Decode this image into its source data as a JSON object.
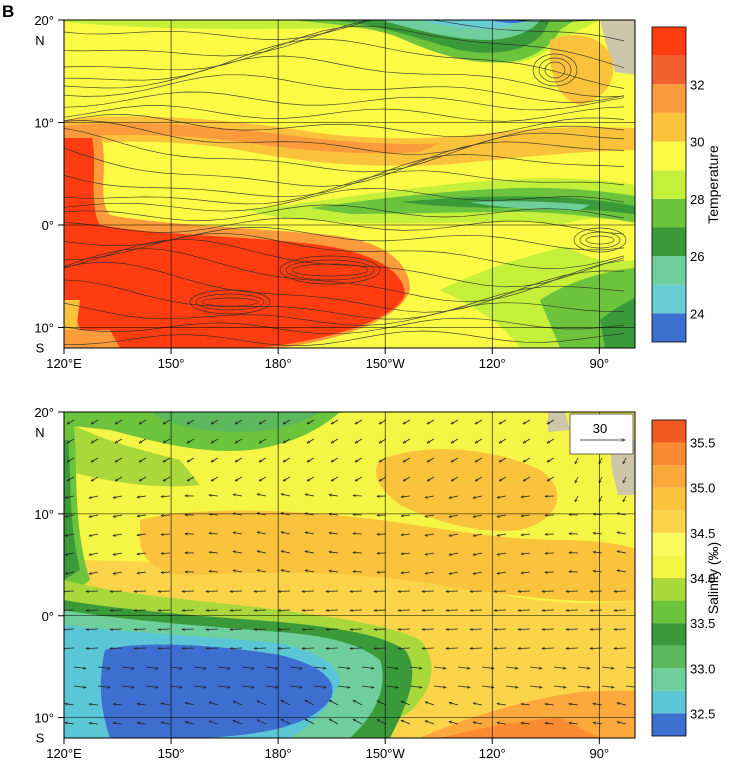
{
  "figure": {
    "panel_letter": "B"
  },
  "chart_data": [
    {
      "type": "heatmap",
      "panel": "top",
      "overlay": "streamlines",
      "x_ticks": [
        "120°E",
        "150°",
        "180°",
        "150°W",
        "120°",
        "90°"
      ],
      "x_tick_lon": [
        120,
        150,
        180,
        210,
        240,
        270
      ],
      "xlim_lon": [
        120,
        280
      ],
      "y_ticks": [
        {
          "lat": 20,
          "label": "20°",
          "suffix": "N"
        },
        {
          "lat": 10,
          "label": "10°",
          "suffix": ""
        },
        {
          "lat": 0,
          "label": "0°",
          "suffix": ""
        },
        {
          "lat": -10,
          "label": "10°",
          "suffix": "S"
        }
      ],
      "ylim_lat": [
        -12,
        20
      ],
      "colorbar": {
        "label": "Temperature",
        "levels": [
          23,
          24,
          25,
          26,
          27,
          28,
          29,
          30,
          31,
          32,
          33,
          34
        ],
        "colors": [
          "#3d6fd1",
          "#67cdd2",
          "#6fcf9c",
          "#3a9a3a",
          "#6cc43c",
          "#c5f03a",
          "#fbfb46",
          "#fbc33c",
          "#fb9b3c",
          "#f06030",
          "#ff3d10"
        ],
        "tick_labels": [
          "24",
          "26",
          "28",
          "30",
          "32"
        ],
        "tick_values": [
          24,
          26,
          28,
          30,
          32
        ]
      }
    },
    {
      "type": "heatmap",
      "panel": "bottom",
      "overlay": "vectors",
      "reference_vector": {
        "label": "30"
      },
      "x_ticks": [
        "120°E",
        "150°",
        "180°",
        "150°W",
        "120°",
        "90°"
      ],
      "x_tick_lon": [
        120,
        150,
        180,
        210,
        240,
        270
      ],
      "xlim_lon": [
        120,
        280
      ],
      "y_ticks": [
        {
          "lat": 20,
          "label": "20°",
          "suffix": "N"
        },
        {
          "lat": 10,
          "label": "10°",
          "suffix": ""
        },
        {
          "lat": 0,
          "label": "0°",
          "suffix": ""
        },
        {
          "lat": -10,
          "label": "10°",
          "suffix": "S"
        }
      ],
      "ylim_lat": [
        -12,
        20
      ],
      "colorbar": {
        "label": "Salinity (‰)",
        "levels": [
          32.25,
          32.5,
          32.75,
          33.0,
          33.25,
          33.5,
          33.75,
          34.0,
          34.25,
          34.5,
          34.75,
          35.0,
          35.25,
          35.5,
          35.75
        ],
        "colors": [
          "#3d6fd1",
          "#5bc6d6",
          "#6fcf9c",
          "#5cb85c",
          "#3a9a3a",
          "#6cc43c",
          "#a8d83a",
          "#f5f545",
          "#fbfb60",
          "#fbd44a",
          "#fbc33c",
          "#fba83c",
          "#fb8a30",
          "#f05a20"
        ],
        "tick_labels": [
          "32.5",
          "33.0",
          "33.5",
          "34.0",
          "34.5",
          "35.0",
          "35.5"
        ],
        "tick_values": [
          32.5,
          33.0,
          33.5,
          34.0,
          34.5,
          35.0,
          35.5
        ]
      }
    }
  ]
}
